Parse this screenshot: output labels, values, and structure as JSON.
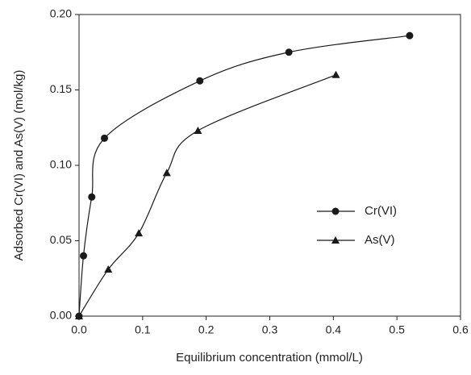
{
  "chart_data": {
    "type": "line",
    "x_label": "Equilibrium concentration (mmol/L)",
    "y_label": "Adsorbed Cr(VI) and As(V) (mol/kg)",
    "xlim": [
      0,
      0.6
    ],
    "ylim": [
      0,
      0.2
    ],
    "xticks": [
      {
        "value": 0,
        "label": "0.0"
      },
      0.1,
      0.2,
      0.3,
      0.4,
      0.5,
      0.6
    ],
    "yticks": [
      {
        "value": 0,
        "label": "0.00"
      },
      0.05,
      {
        "value": 0.1,
        "label": "0.10"
      },
      0.15,
      {
        "value": 0.2,
        "label": "0.20"
      }
    ],
    "legend": "right",
    "series": [
      {
        "name": "Cr(VI)",
        "color": "#1a1a1a",
        "marker": "circle",
        "x": [
          0,
          0.007,
          0.02,
          0.04,
          0.19,
          0.33,
          0.52
        ],
        "values": [
          0,
          0.04,
          0.079,
          0.118,
          0.156,
          0.175,
          0.186
        ]
      },
      {
        "name": "As(V)",
        "color": "#1a1a1a",
        "marker": "triangle",
        "x": [
          0,
          0.046,
          0.094,
          0.138,
          0.187,
          0.404
        ],
        "values": [
          0,
          0.031,
          0.055,
          0.095,
          0.123,
          0.16
        ]
      }
    ]
  }
}
